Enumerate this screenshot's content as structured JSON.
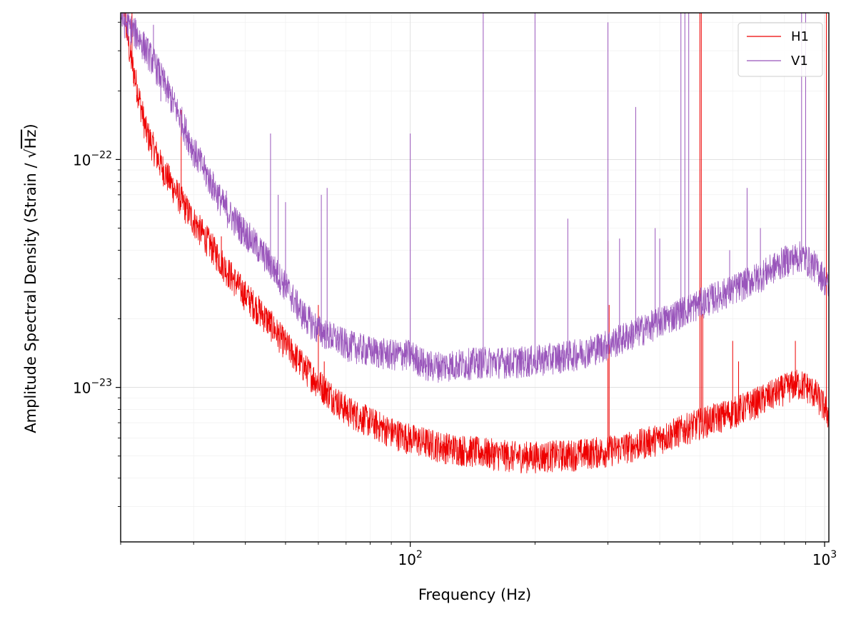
{
  "chart_data": {
    "type": "line",
    "title": "",
    "xlabel": "Frequency (Hz)",
    "ylabel": "Amplitude Spectral Density (Strain / √Hz)",
    "ylabel_main": "Amplitude Spectral Density (Strain / ",
    "ylabel_sqrt": "√",
    "ylabel_unit": "Hz",
    "ylabel_close": ")",
    "x_scale": "log",
    "y_scale": "log",
    "xlim": [
      20,
      1024
    ],
    "ylim": [
      2.1e-24,
      4.4e-22
    ],
    "grid": true,
    "legend_position": "top-right",
    "x_ticks": [
      {
        "value": 100,
        "base": "10",
        "exp": "2"
      },
      {
        "value": 1000,
        "base": "10",
        "exp": "3"
      }
    ],
    "y_ticks": [
      {
        "value": 1e-23,
        "base": "10",
        "exp": "−23"
      },
      {
        "value": 1e-22,
        "base": "10",
        "exp": "−22"
      }
    ],
    "series": [
      {
        "name": "H1",
        "color": "#ee0000",
        "floor": [
          [
            20,
            6e-22
          ],
          [
            21,
            3e-22
          ],
          [
            22,
            2e-22
          ],
          [
            23,
            1.35e-22
          ],
          [
            25,
            9.5e-23
          ],
          [
            27,
            7.4e-23
          ],
          [
            30,
            5.4e-23
          ],
          [
            33,
            4.2e-23
          ],
          [
            36,
            3.3e-23
          ],
          [
            40,
            2.55e-23
          ],
          [
            45,
            2e-23
          ],
          [
            50,
            1.55e-23
          ],
          [
            55,
            1.25e-23
          ],
          [
            60,
            1.05e-23
          ],
          [
            70,
            8e-24
          ],
          [
            80,
            7.1e-24
          ],
          [
            90,
            6.4e-24
          ],
          [
            100,
            6e-24
          ],
          [
            120,
            5.5e-24
          ],
          [
            150,
            5.2e-24
          ],
          [
            180,
            5e-24
          ],
          [
            200,
            5e-24
          ],
          [
            250,
            5.1e-24
          ],
          [
            300,
            5.3e-24
          ],
          [
            350,
            5.6e-24
          ],
          [
            400,
            6e-24
          ],
          [
            450,
            6.5e-24
          ],
          [
            500,
            7e-24
          ],
          [
            600,
            7.8e-24
          ],
          [
            700,
            8.8e-24
          ],
          [
            800,
            9.9e-24
          ],
          [
            850,
            1.04e-23
          ],
          [
            900,
            1.02e-23
          ],
          [
            950,
            9.4e-24
          ],
          [
            1000,
            8.2e-24
          ],
          [
            1024,
            7.6e-24
          ]
        ],
        "peaks": [
          [
            20.5,
            4.4e-22
          ],
          [
            21.3,
            4.4e-22
          ],
          [
            28,
            1.65e-22
          ],
          [
            35,
            4.6e-23
          ],
          [
            41,
            2.3e-23
          ],
          [
            46,
            1.75e-23
          ],
          [
            60,
            2.3e-23
          ],
          [
            62,
            1.3e-23
          ],
          [
            90,
            6.2e-24
          ],
          [
            300,
            4.4e-23
          ],
          [
            302,
            2.3e-23
          ],
          [
            500,
            4.4e-22
          ],
          [
            504,
            4.4e-22
          ],
          [
            508,
            2.1e-23
          ],
          [
            600,
            1.6e-23
          ],
          [
            620,
            1.3e-23
          ],
          [
            850,
            1.6e-23
          ],
          [
            1010,
            4.4e-22
          ]
        ]
      },
      {
        "name": "V1",
        "color": "#9955bb",
        "floor": [
          [
            20,
            4.2e-22
          ],
          [
            22,
            3.5e-22
          ],
          [
            24,
            2.7e-22
          ],
          [
            26,
            2e-22
          ],
          [
            28,
            1.5e-22
          ],
          [
            30,
            1.1e-22
          ],
          [
            33,
            8e-23
          ],
          [
            36,
            6e-23
          ],
          [
            40,
            4.8e-23
          ],
          [
            45,
            3.7e-23
          ],
          [
            50,
            2.8e-23
          ],
          [
            55,
            2.1e-23
          ],
          [
            60,
            1.8e-23
          ],
          [
            70,
            1.55e-23
          ],
          [
            80,
            1.45e-23
          ],
          [
            90,
            1.4e-23
          ],
          [
            100,
            1.4e-23
          ],
          [
            110,
            1.25e-23
          ],
          [
            120,
            1.25e-23
          ],
          [
            150,
            1.3e-23
          ],
          [
            180,
            1.3e-23
          ],
          [
            200,
            1.32e-23
          ],
          [
            250,
            1.4e-23
          ],
          [
            300,
            1.55e-23
          ],
          [
            350,
            1.75e-23
          ],
          [
            400,
            1.95e-23
          ],
          [
            450,
            2.15e-23
          ],
          [
            500,
            2.35e-23
          ],
          [
            600,
            2.7e-23
          ],
          [
            700,
            3.1e-23
          ],
          [
            800,
            3.6e-23
          ],
          [
            880,
            3.8e-23
          ],
          [
            950,
            3.4e-23
          ],
          [
            1000,
            3e-23
          ],
          [
            1024,
            2.7e-23
          ]
        ],
        "peaks": [
          [
            22,
            3.4e-22
          ],
          [
            24,
            3.9e-22
          ],
          [
            25,
            1.8e-22
          ],
          [
            36,
            7.3e-23
          ],
          [
            46,
            1.3e-22
          ],
          [
            48,
            7e-23
          ],
          [
            50,
            6.5e-23
          ],
          [
            61,
            7e-23
          ],
          [
            63,
            7.5e-23
          ],
          [
            100,
            1.3e-22
          ],
          [
            150,
            4.4e-22
          ],
          [
            200,
            4.4e-22
          ],
          [
            240,
            5.5e-23
          ],
          [
            300,
            4e-22
          ],
          [
            320,
            4.5e-23
          ],
          [
            350,
            1.7e-22
          ],
          [
            390,
            5e-23
          ],
          [
            400,
            4.5e-23
          ],
          [
            450,
            4.4e-22
          ],
          [
            460,
            4.4e-22
          ],
          [
            470,
            4.4e-22
          ],
          [
            590,
            4e-23
          ],
          [
            650,
            7.5e-23
          ],
          [
            700,
            5e-23
          ],
          [
            880,
            4.4e-22
          ],
          [
            900,
            4.4e-22
          ]
        ]
      }
    ]
  }
}
